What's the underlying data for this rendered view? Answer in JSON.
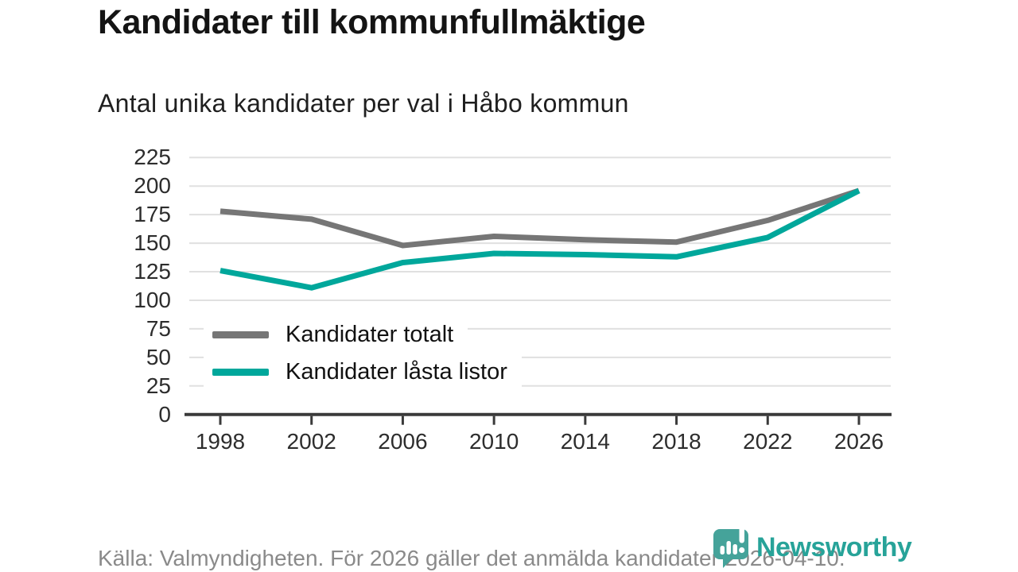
{
  "title": "Kandidater till kommunfullmäktige",
  "subtitle": "Antal unika kandidater per val i Håbo kommun",
  "footer": {
    "source_text": "Källa: Valmyndigheten. För 2026 gäller det anmälda kandidater 2026-04-10.",
    "brand_name": "Newsworthy"
  },
  "colors": {
    "grid": "#e0e0e0",
    "axis": "#3a3a3a",
    "tick_label": "#2d2d2d",
    "total_line": "#767676",
    "locked_line": "#00a79b",
    "brand_teal": "#45a39a",
    "footer_text": "#8a8a8a"
  },
  "chart_data": {
    "type": "line",
    "title": "Kandidater till kommunfullmäktige",
    "subtitle": "Antal unika kandidater per val i Håbo kommun",
    "categories": [
      "1998",
      "2002",
      "2006",
      "2010",
      "2014",
      "2018",
      "2022",
      "2026"
    ],
    "series": [
      {
        "name": "Kandidater totalt",
        "color": "#767676",
        "values": [
          178,
          171,
          148,
          156,
          153,
          151,
          170,
          196
        ]
      },
      {
        "name": "Kandidater låsta listor",
        "color": "#00a79b",
        "values": [
          126,
          111,
          133,
          141,
          140,
          138,
          155,
          196
        ]
      }
    ],
    "xlabel": "",
    "ylabel": "",
    "ylim": [
      0,
      225
    ],
    "yticks": [
      0,
      25,
      50,
      75,
      100,
      125,
      150,
      175,
      200,
      225
    ],
    "grid": true,
    "legend_position": "inside-bottom-left"
  }
}
